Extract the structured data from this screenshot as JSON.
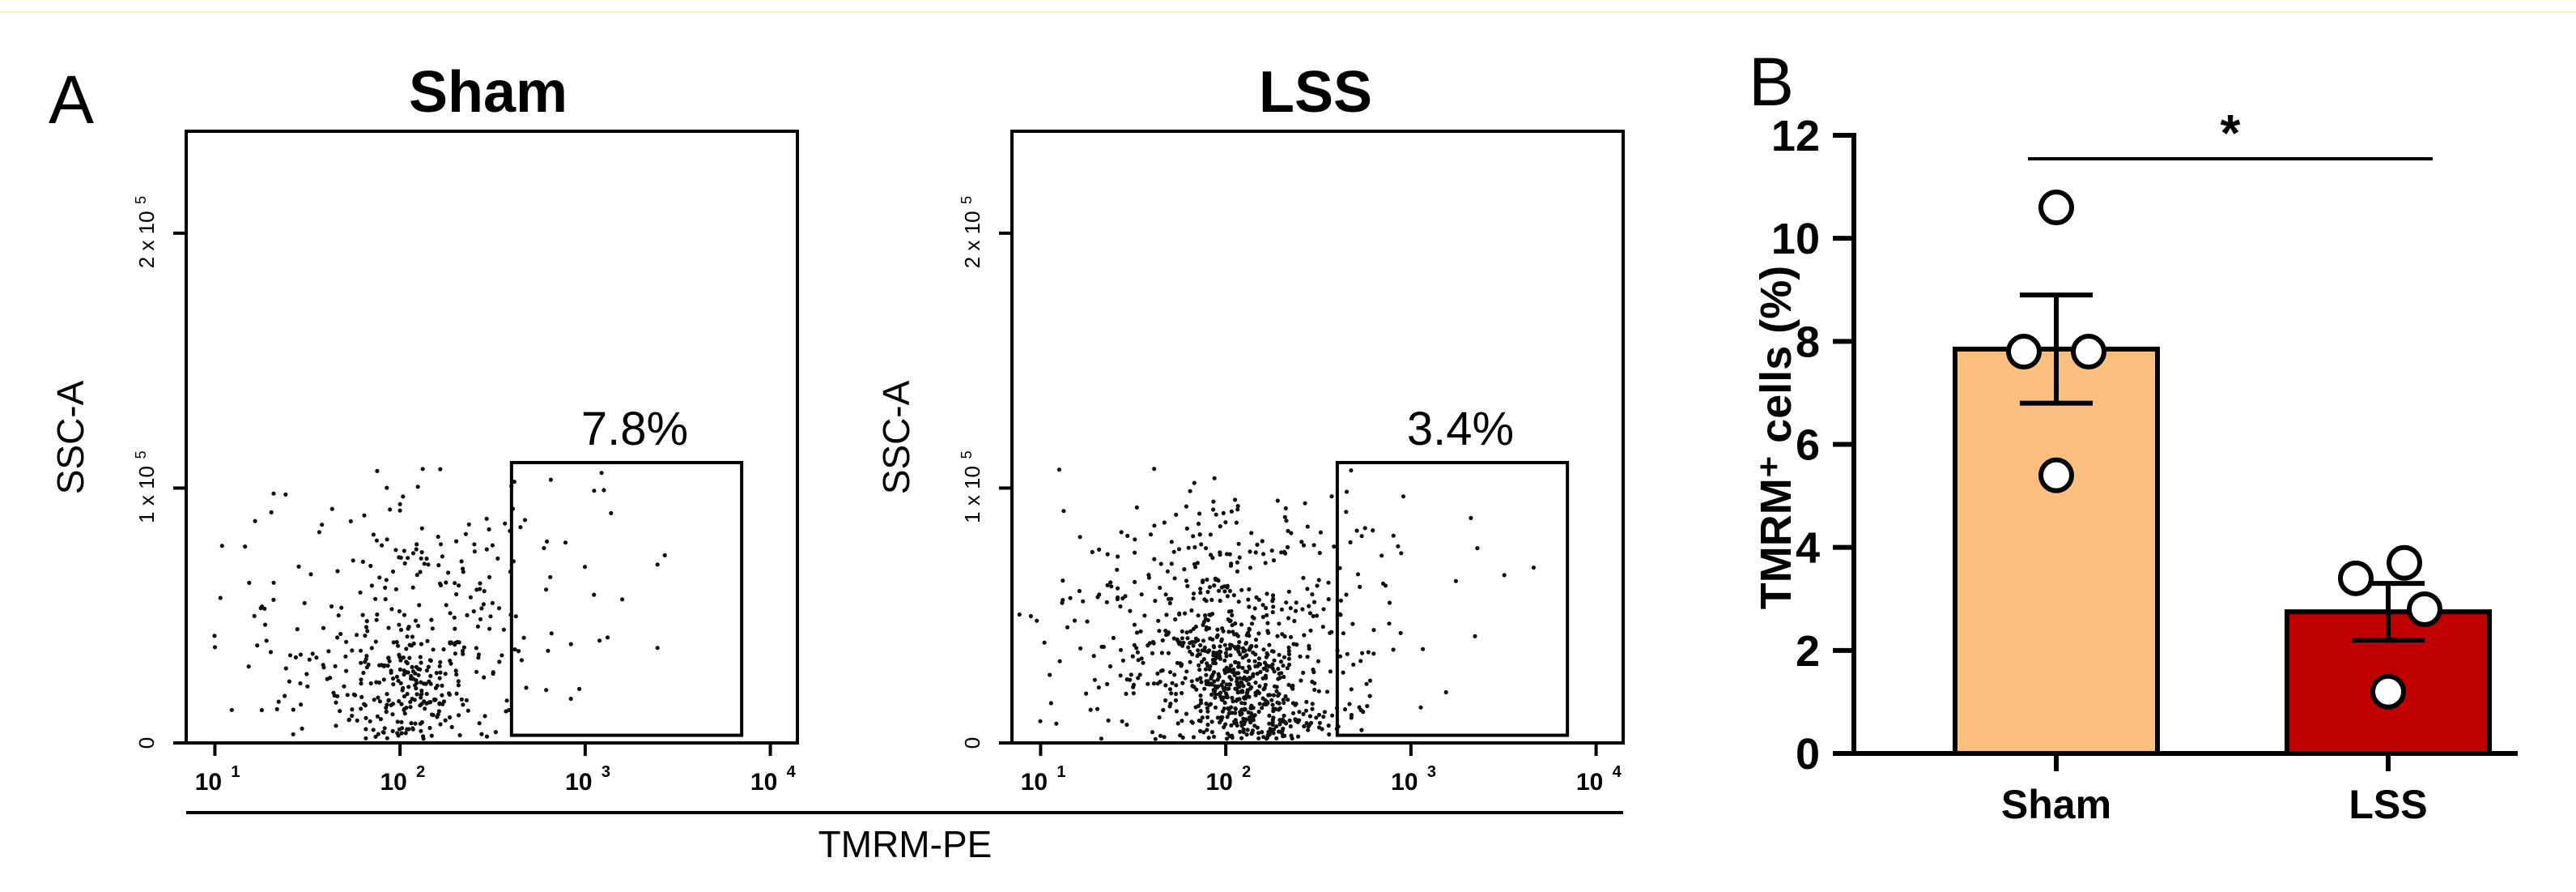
{
  "panel_labels": {
    "a": "A",
    "b": "B"
  },
  "flow": {
    "x_label": "TMRM-PE",
    "y_label": "SSC-A",
    "x_ticks": [
      "10",
      "10",
      "10",
      "10"
    ],
    "x_tick_exponents": [
      "1",
      "2",
      "3",
      "4"
    ],
    "y_ticks": [
      {
        "value": 0,
        "text": "0"
      },
      {
        "value": 100000,
        "text": "1 x 10"
      },
      {
        "value": 200000,
        "text": "2 x 10"
      }
    ],
    "y_tick_exponent": "5"
  },
  "chart_data": [
    {
      "type": "scatter",
      "title": "Sham",
      "xlabel": "TMRM-PE",
      "ylabel": "SSC-A",
      "x_scale": "log",
      "xlim": [
        7,
        14000
      ],
      "ylim": [
        0,
        240000
      ],
      "gate": {
        "x": [
          400,
          7000
        ],
        "y": [
          3000,
          110000
        ],
        "label": "7.8%"
      }
    },
    {
      "type": "scatter",
      "title": "LSS",
      "xlabel": "TMRM-PE",
      "ylabel": "SSC-A",
      "x_scale": "log",
      "xlim": [
        7,
        14000
      ],
      "ylim": [
        0,
        240000
      ],
      "gate": {
        "x": [
          400,
          7000
        ],
        "y": [
          3000,
          110000
        ],
        "label": "3.4%"
      }
    },
    {
      "type": "bar",
      "categories": [
        "Sham",
        "LSS"
      ],
      "ylabel": "TMRM⁺ cells (%)",
      "ylim": [
        0,
        12
      ],
      "y_ticks": [
        0,
        2,
        4,
        6,
        8,
        10,
        12
      ],
      "values": [
        7.85,
        2.75
      ],
      "sem": [
        1.05,
        0.55
      ],
      "points": [
        [
          10.6,
          7.8,
          7.8,
          5.4
        ],
        [
          3.4,
          3.7,
          2.8,
          1.2
        ]
      ],
      "colors": [
        "#fdbf80",
        "#c00000"
      ],
      "significance": "*"
    }
  ]
}
